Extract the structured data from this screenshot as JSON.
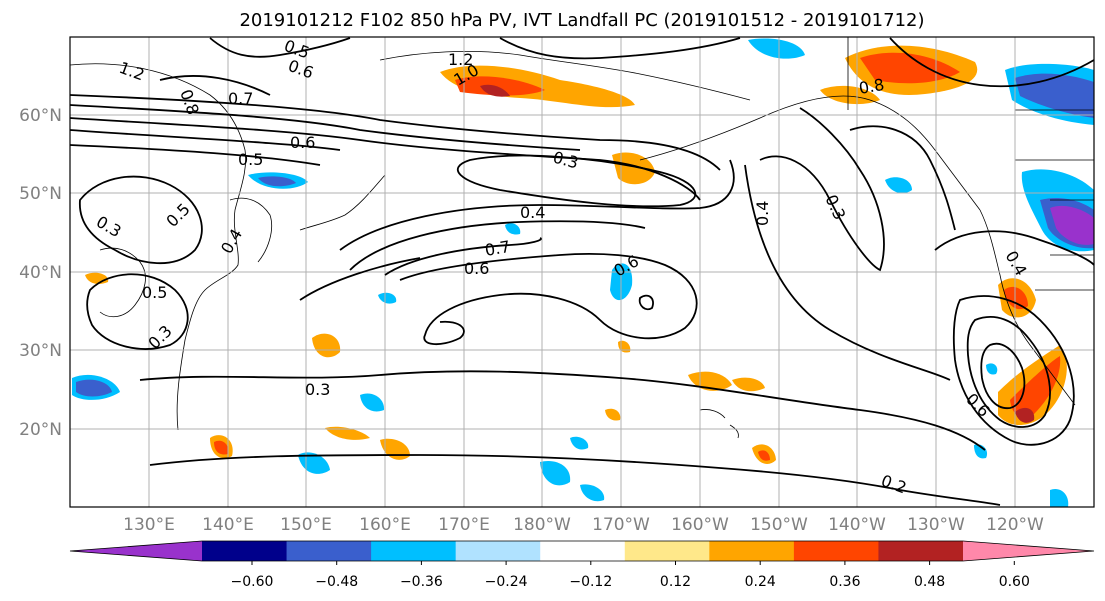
{
  "title": "2019101212 F102 850 hPa PV, IVT Landfall PC (2019101512 - 2019101712)",
  "chart_data": {
    "type": "map",
    "title": "2019101212 F102 850 hPa PV, IVT Landfall PC (2019101512 - 2019101712)",
    "lon_ticks": [
      "130°E",
      "140°E",
      "150°E",
      "160°E",
      "170°E",
      "180°W",
      "170°W",
      "160°W",
      "150°W",
      "140°W",
      "130°W",
      "120°W"
    ],
    "lat_ticks": [
      "60°N",
      "50°N",
      "40°N",
      "30°N",
      "20°N"
    ],
    "colorbar": {
      "ticks": [
        "−0.60",
        "−0.48",
        "−0.36",
        "−0.24",
        "−0.12",
        "0.12",
        "0.24",
        "0.36",
        "0.48",
        "0.60"
      ],
      "colors": [
        "#9932cc",
        "#00008b",
        "#3a5fcd",
        "#00bfff",
        "#b0e2ff",
        "#ffffff",
        "#ffe88a",
        "#ffa500",
        "#ff4500",
        "#b22222",
        "#ff88aa"
      ],
      "extend": "both"
    },
    "contour_labels": [
      "1.2",
      "0.5",
      "0.6",
      "0.8",
      "0.7",
      "0.6",
      "0.5",
      "0.3",
      "0.5",
      "0.4",
      "0.5",
      "0.3",
      "1.2",
      "1.0",
      "0.3",
      "0.4",
      "0.7",
      "0.6",
      "0.6",
      "0.4",
      "0.3",
      "0.8",
      "0.3",
      "0.2",
      "0.6",
      "0.4"
    ]
  }
}
